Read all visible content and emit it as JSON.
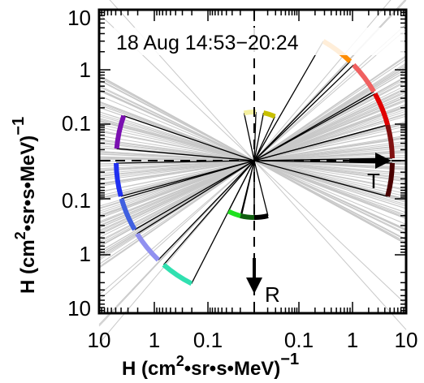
{
  "chart_data": {
    "type": "scatter",
    "title": "18 Aug 14:53−20:24",
    "xlabel": "H (cm",
    "xlabel_sup": "2",
    "xlabel_tail": "•sr•s•MeV)",
    "xlabel_exp": "−1",
    "ylabel": "H (cm",
    "ylabel_sup": "2",
    "ylabel_tail": "•sr•s•MeV)",
    "ylabel_exp": "−1",
    "x_tick_labels": [
      "10",
      "1",
      "0.1",
      "0.1",
      "1",
      "10"
    ],
    "y_tick_labels": [
      "10",
      "1",
      "0.1",
      "0.1",
      "1",
      "10"
    ],
    "scale": "log (mirrored about origin)",
    "arrow_labels": {
      "horizontal": "T",
      "vertical": "R"
    },
    "grid": false,
    "sectors": [
      {
        "angle_deg": 95,
        "color": "#F5F0A0"
      },
      {
        "angle_deg": 72,
        "color": "#C8C000"
      },
      {
        "angle_deg": 53,
        "color": "#FF8C00"
      },
      {
        "angle_deg": 37,
        "color": "#F06060"
      },
      {
        "angle_deg": 22,
        "color": "#E00000"
      },
      {
        "angle_deg": 8,
        "color": "#801010"
      },
      {
        "angle_deg": -8,
        "color": "#4A0000"
      },
      {
        "angle_deg": 168,
        "color": "#7A10B0"
      },
      {
        "angle_deg": 188,
        "color": "#2030F0"
      },
      {
        "angle_deg": 203,
        "color": "#4060E0"
      },
      {
        "angle_deg": 219,
        "color": "#9090F0"
      },
      {
        "angle_deg": 236,
        "color": "#30E0B0"
      },
      {
        "angle_deg": 250,
        "color": "#20E020"
      },
      {
        "angle_deg": 263,
        "color": "#106010"
      },
      {
        "angle_deg": 277,
        "color": "#000000"
      }
    ]
  }
}
